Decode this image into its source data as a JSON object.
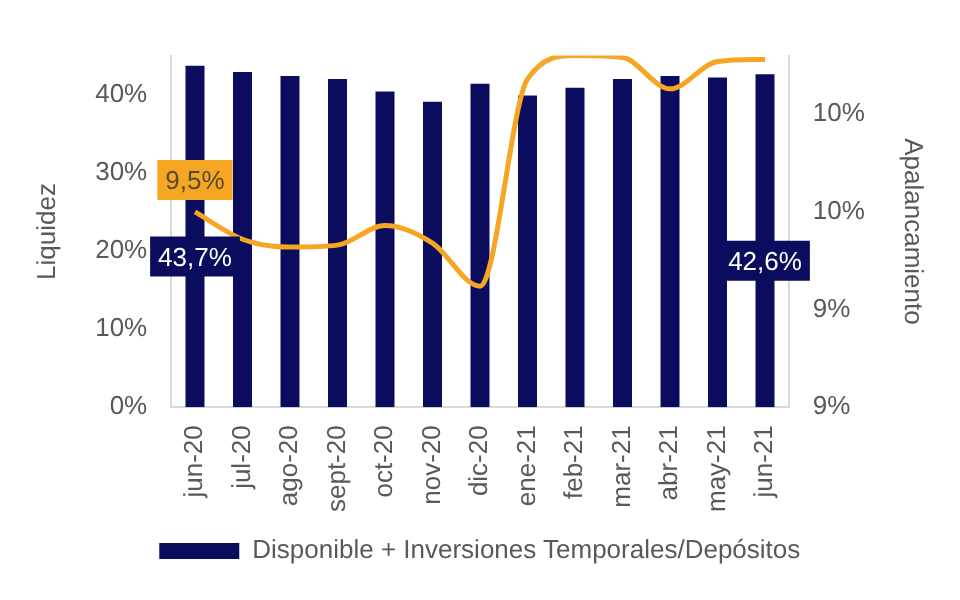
{
  "chart_data": {
    "type": "bar",
    "categories": [
      "jun-20",
      "jul-20",
      "ago-20",
      "sept-20",
      "oct-20",
      "nov-20",
      "dic-20",
      "ene-21",
      "feb-21",
      "mar-21",
      "abr-21",
      "may-21",
      "jun-21"
    ],
    "ylabel": "Liquidez",
    "y2label": "Apalancamiento",
    "ylim": [
      0,
      45
    ],
    "yticks": [
      {
        "value": 0,
        "label": "0%"
      },
      {
        "value": 10,
        "label": "10%"
      },
      {
        "value": 20,
        "label": "20%"
      },
      {
        "value": 30,
        "label": "30%"
      },
      {
        "value": 40,
        "label": "40%"
      }
    ],
    "y2lim": [
      8.5,
      10.3
    ],
    "y2ticks": [
      {
        "value": 8.5,
        "label": "9%"
      },
      {
        "value": 9,
        "label": "9%"
      },
      {
        "value": 9.5,
        "label": "10%"
      },
      {
        "value": 10,
        "label": "10%"
      }
    ],
    "series": [
      {
        "name": "Disponible + Inversiones Temporales/Depósitos",
        "color": "#0c0c5e",
        "values": [
          43.7,
          42.9,
          42.4,
          42.0,
          40.4,
          39.1,
          41.4,
          39.9,
          40.9,
          42.0,
          42.4,
          42.2,
          42.6
        ],
        "value_labels": [
          "43,7%",
          null,
          null,
          null,
          null,
          null,
          null,
          null,
          null,
          null,
          null,
          null,
          "42,6%"
        ]
      },
      {
        "type": "line",
        "axis": "y2",
        "color": "#f5a623",
        "values": [
          9.5,
          9.36,
          9.32,
          9.33,
          9.43,
          9.34,
          9.12,
          10.18,
          10.3,
          10.29,
          10.13,
          10.27,
          10.28
        ],
        "value_labels": [
          "9,5%",
          null,
          null,
          null,
          null,
          null,
          null,
          null,
          null,
          null,
          null,
          null,
          null
        ]
      }
    ],
    "grid": false,
    "legend": "bottom",
    "marker": "none",
    "line_style": "solid"
  }
}
